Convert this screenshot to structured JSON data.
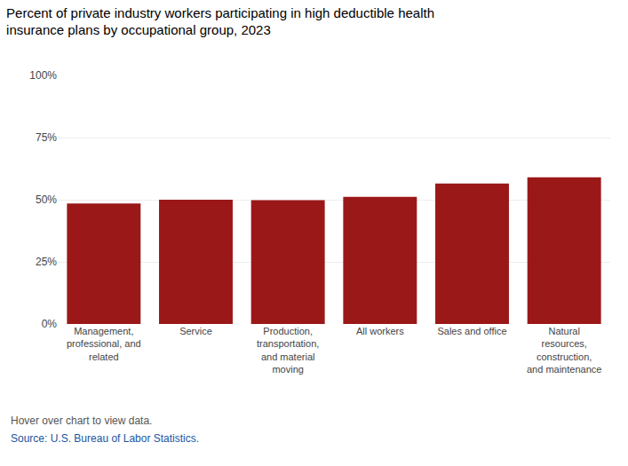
{
  "chart_data": {
    "type": "bar",
    "title": "Percent of private industry workers participating in high deductible health\ninsurance plans by occupational group, 2023",
    "categories": [
      "Management,\nprofessional, and\nrelated",
      "Service",
      "Production,\ntransportation,\nand material\nmoving",
      "All workers",
      "Sales and office",
      "Natural\nresources,\nconstruction,\nand maintenance"
    ],
    "values": [
      48.5,
      50.0,
      49.8,
      51.2,
      56.5,
      59.0
    ],
    "color": "#9B1818",
    "ylim": [
      0,
      100
    ],
    "yticks": [
      {
        "value": 0,
        "label": "0%"
      },
      {
        "value": 25,
        "label": "25%"
      },
      {
        "value": 50,
        "label": "50%"
      },
      {
        "value": 75,
        "label": "75%"
      },
      {
        "value": 100,
        "label": "100%"
      }
    ],
    "grid": true,
    "annotations": [
      {
        "text": "Hover over chart to view data.",
        "color": "#555555"
      },
      {
        "text": "Source: U.S. Bureau of Labor Statistics.",
        "color": "#1a55a0"
      }
    ]
  }
}
